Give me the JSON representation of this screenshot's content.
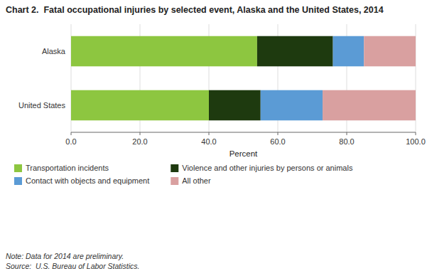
{
  "chart_data": {
    "type": "bar",
    "orientation": "horizontal",
    "stacked": true,
    "title": "Chart 2.  Fatal occupational injuries by selected event, Alaska and the United States, 2014",
    "categories": [
      "United States",
      "Alaska"
    ],
    "series": [
      {
        "name": "Transportation incidents",
        "color": "#8DC640",
        "values": [
          40.0,
          54.0
        ]
      },
      {
        "name": "Violence and other injuries by persons or animals",
        "color": "#1E3A0F",
        "values": [
          15.0,
          22.0
        ]
      },
      {
        "name": "Contact with objects and equipment",
        "color": "#5B9BD5",
        "values": [
          18.0,
          9.0
        ]
      },
      {
        "name": "All other",
        "color": "#D9A0A0",
        "values": [
          27.0,
          15.0
        ]
      }
    ],
    "xlim": [
      0,
      100
    ],
    "xticks": [
      {
        "value": 0,
        "label": "0.0"
      },
      {
        "value": 20,
        "label": "20.0"
      },
      {
        "value": 40,
        "label": "40.0"
      },
      {
        "value": 60,
        "label": "60.0"
      },
      {
        "value": 80,
        "label": "80.0"
      },
      {
        "value": 100,
        "label": "100.0"
      }
    ],
    "xlabel": "Percent",
    "grid": true,
    "legend": "bottom",
    "annotations": [
      "Note: Data for 2014 are preliminary.\nSource:  U.S. Bureau of Labor Statistics."
    ]
  }
}
